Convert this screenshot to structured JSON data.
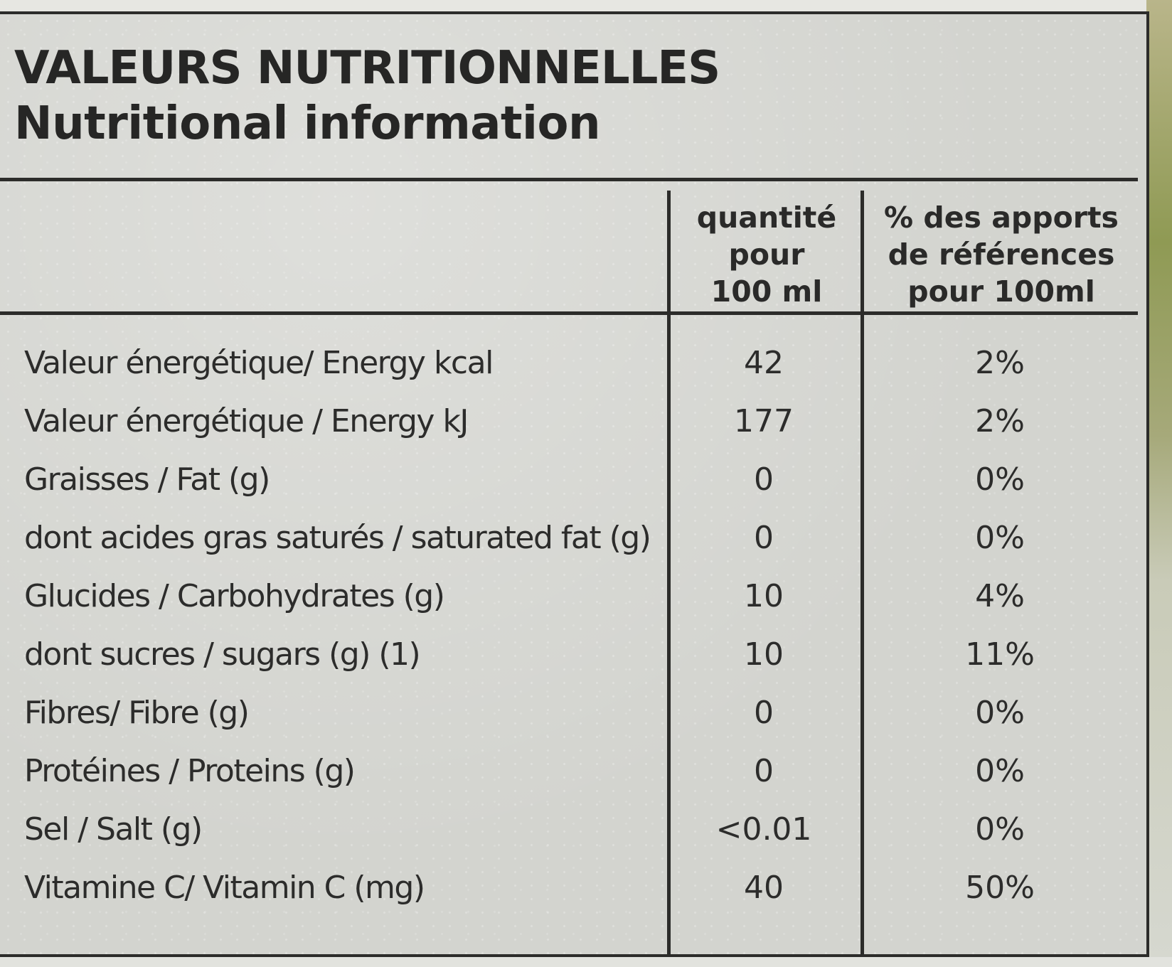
{
  "title": {
    "fr": "VALEURS NUTRITIONNELLES",
    "en": "Nutritional information"
  },
  "header": {
    "quantity": [
      "quantité",
      "pour",
      "100 ml"
    ],
    "reference": [
      "% des apports",
      "de références",
      "pour 100ml"
    ]
  },
  "rows": [
    {
      "label": "Valeur énergétique/ Energy kcal",
      "qty": "42",
      "pct": "2%"
    },
    {
      "label": "Valeur énergétique / Energy kJ",
      "qty": "177",
      "pct": "2%"
    },
    {
      "label": "Graisses / Fat (g)",
      "qty": "0",
      "pct": "0%"
    },
    {
      "label": "dont acides gras saturés / saturated fat (g)",
      "qty": "0",
      "pct": "0%"
    },
    {
      "label": "Glucides / Carbohydrates (g)",
      "qty": "10",
      "pct": "4%"
    },
    {
      "label": "dont sucres / sugars  (g) (1)",
      "qty": "10",
      "pct": "11%"
    },
    {
      "label": "Fibres/ Fibre (g)",
      "qty": "0",
      "pct": "0%"
    },
    {
      "label": "Protéines / Proteins (g)",
      "qty": "0",
      "pct": "0%"
    },
    {
      "label": "Sel / Salt (g)",
      "qty": "<0.01",
      "pct": "0%"
    },
    {
      "label": "Vitamine C/ Vitamin C (mg)",
      "qty": "40",
      "pct": "50%"
    }
  ],
  "colors": {
    "panel": "#d3d4cf",
    "ink": "#2b2b2a",
    "package_green": "#8f9a54"
  }
}
